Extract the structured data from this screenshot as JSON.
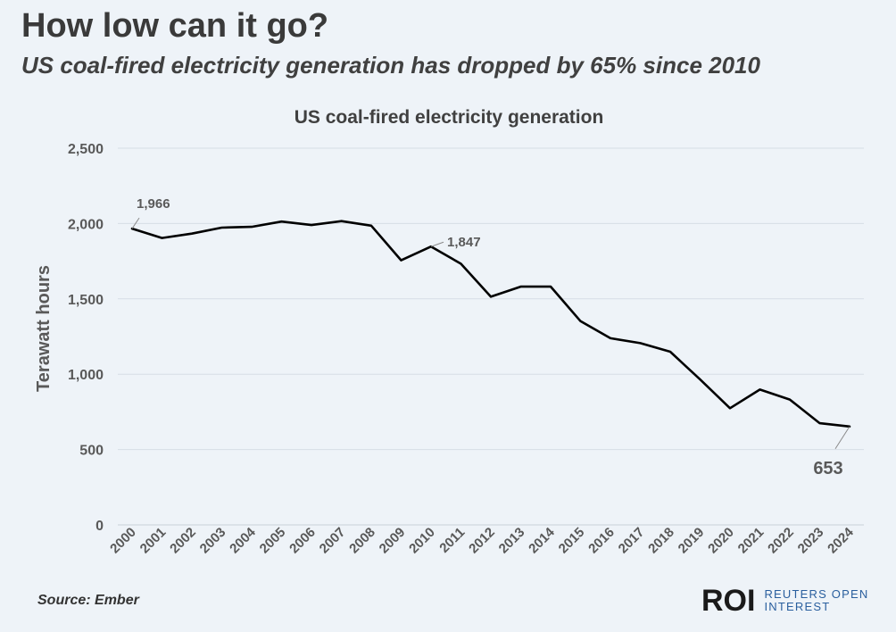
{
  "header": {
    "title": "How low can it go?",
    "subtitle": "US coal-fired electricity generation has dropped by 65% since 2010"
  },
  "footer": {
    "source": "Source: Ember",
    "logo_mark": "ROI",
    "logo_line1": "REUTERS OPEN",
    "logo_line2": "INTEREST"
  },
  "colors": {
    "background": "#eef3f8",
    "line": "#000000",
    "grid": "#d6dde5",
    "text": "#595959"
  },
  "chart_data": {
    "type": "line",
    "title": "US coal-fired electricity generation",
    "xlabel": "",
    "ylabel": "Terawatt hours",
    "ylim": [
      0,
      2500
    ],
    "yticks": [
      0,
      500,
      1000,
      1500,
      2000,
      2500
    ],
    "ytick_labels": [
      "0",
      "500",
      "1,000",
      "1,500",
      "2,000",
      "2,500"
    ],
    "grid": true,
    "categories": [
      "2000",
      "2001",
      "2002",
      "2003",
      "2004",
      "2005",
      "2006",
      "2007",
      "2008",
      "2009",
      "2010",
      "2011",
      "2012",
      "2013",
      "2014",
      "2015",
      "2016",
      "2017",
      "2018",
      "2019",
      "2020",
      "2021",
      "2022",
      "2023",
      "2024"
    ],
    "series": [
      {
        "name": "US coal-fired electricity generation",
        "values": [
          1966,
          1904,
          1933,
          1973,
          1978,
          2013,
          1990,
          2016,
          1986,
          1756,
          1847,
          1733,
          1514,
          1581,
          1582,
          1352,
          1239,
          1206,
          1149,
          965,
          774,
          898,
          832,
          675,
          653
        ]
      }
    ],
    "annotations": [
      {
        "category": "2000",
        "value": 1966,
        "text": "1,966"
      },
      {
        "category": "2010",
        "value": 1847,
        "text": "1,847"
      },
      {
        "category": "2024",
        "value": 653,
        "text": "653"
      }
    ]
  }
}
